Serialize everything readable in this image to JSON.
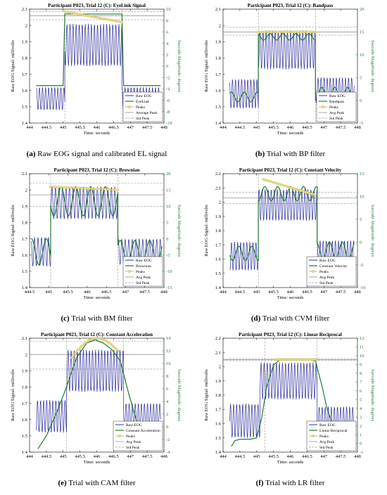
{
  "colors": {
    "raw": "#2e2e9e",
    "filter": "#207a35",
    "peaks": "#c8b45a",
    "peaks_fill": "#efe08c",
    "avg": "#808080",
    "std": "#9a9a9a",
    "right_axis": "#207a35"
  },
  "chart_data": [
    {
      "type": "line",
      "id": "a",
      "caption_label": "(a)",
      "caption_text": "Raw EOG signal and calibrated EL signal",
      "title": "Participant P023, Trial 12 (C): EyeLink Signal",
      "xlabel": "Time: seconds",
      "ylabel": "Raw EOG Signal: millivolts",
      "y2label": "Saccade Magnitude: degrees",
      "xlim": [
        444,
        448
      ],
      "ylim": [
        1.4,
        2.1
      ],
      "y2lim": [
        -10,
        10
      ],
      "xticks": [
        "444",
        "444.5",
        "445",
        "445.5",
        "446",
        "446.5",
        "447",
        "447.5",
        "448"
      ],
      "yticks": [
        "1.4",
        "1.5",
        "1.6",
        "1.7",
        "1.8",
        "1.9",
        "2",
        "2.1"
      ],
      "y2ticks": [
        "-10",
        "-8",
        "-6",
        "-4",
        "-2",
        "0",
        "2",
        "4",
        "6",
        "8",
        "10"
      ],
      "legend": [
        "Raw EOG",
        "EyeLink",
        "Peaks",
        "Average Peak",
        "Std Peak"
      ],
      "legend_position": "bottom-right",
      "raw": {
        "segments": [
          [
            444.2,
            445.05,
            1.55,
            0.07
          ],
          [
            445.05,
            446.75,
            1.88,
            0.13
          ],
          [
            446.75,
            447.9,
            1.55,
            0.07
          ]
        ]
      },
      "filtered": {
        "segments": [
          [
            444.2,
            445.0,
            1.63,
            0.0
          ],
          [
            445.05,
            446.75,
            2.07,
            0.0
          ],
          [
            446.8,
            447.9,
            1.63,
            0.0
          ]
        ]
      },
      "peaks": {
        "x_range": [
          445.05,
          446.75
        ],
        "y_start": 2.085,
        "y_end": 2.02
      },
      "avg_peak": 2.06,
      "std_peaks": [
        2.035,
        2.085
      ],
      "vlines": [
        445.05,
        446.75
      ]
    },
    {
      "type": "line",
      "id": "b",
      "caption_label": "(b)",
      "caption_text": "Trial with BP filter",
      "title": "Participant P023, Trial 12 (C): Bandpass",
      "xlabel": "Time: seconds",
      "ylabel": "Raw EOG Signal: millivolts",
      "y2label": "Saccade Magnitude: degrees",
      "xlim": [
        444,
        448
      ],
      "ylim": [
        1.4,
        2.1
      ],
      "y2lim": [
        -5,
        20
      ],
      "xticks": [
        "444",
        "444.5",
        "445",
        "445.5",
        "446",
        "446.5",
        "447",
        "447.5",
        "448"
      ],
      "yticks": [
        "1.4",
        "1.5",
        "1.6",
        "1.7",
        "1.8",
        "1.9",
        "2",
        "2.1"
      ],
      "y2ticks": [
        "-5",
        "0",
        "5",
        "10",
        "15",
        "20"
      ],
      "legend": [
        "Raw EOG",
        "Bandpass",
        "Peaks",
        "Avg Peak",
        "Std Peak"
      ],
      "legend_position": "bottom-right",
      "raw": {
        "segments": [
          [
            444.2,
            445.05,
            1.58,
            0.09
          ],
          [
            445.05,
            446.75,
            1.85,
            0.12
          ],
          [
            446.75,
            447.9,
            1.6,
            0.08
          ]
        ]
      },
      "filtered": {
        "segments": [
          [
            444.2,
            445.05,
            1.56,
            0.03
          ],
          [
            445.05,
            446.75,
            1.93,
            0.02
          ],
          [
            446.75,
            447.9,
            1.58,
            0.04
          ]
        ]
      },
      "peaks": {
        "x_range": [
          445.05,
          446.75
        ],
        "y_start": 1.96,
        "y_end": 1.96
      },
      "avg_peak": 1.96,
      "std_peaks": [
        1.94,
        1.99
      ],
      "vlines": [
        445.05,
        446.75
      ]
    },
    {
      "type": "line",
      "id": "c",
      "caption_label": "(c)",
      "caption_text": "Trial with BM filter",
      "title": "Participant P023, Trial 12 (C): Brownian",
      "xlabel": "Time: seconds",
      "ylabel": "Raw EOG Signal: millivolts",
      "y2label": "Saccade Magnitude: degrees",
      "xlim": [
        444.5,
        448
      ],
      "ylim": [
        1.4,
        2.1
      ],
      "y2lim": [
        -15,
        20
      ],
      "xticks": [
        "444.5",
        "445",
        "445.5",
        "446",
        "446.5",
        "447",
        "447.5",
        "448"
      ],
      "yticks": [
        "1.4",
        "1.5",
        "1.6",
        "1.7",
        "1.8",
        "1.9",
        "2",
        "2.1"
      ],
      "y2ticks": [
        "-15",
        "-10",
        "-5",
        "0",
        "5",
        "10",
        "15",
        "20"
      ],
      "legend": [
        "Raw EOG",
        "Brownian",
        "Peaks",
        "Avg Peak",
        "Std Peak"
      ],
      "legend_position": "bottom-right",
      "raw": {
        "segments": [
          [
            444.55,
            445.05,
            1.62,
            0.09
          ],
          [
            445.05,
            446.8,
            1.92,
            0.1
          ],
          [
            446.8,
            447.95,
            1.62,
            0.08
          ]
        ]
      },
      "filtered": {
        "segments": [
          [
            444.55,
            445.05,
            1.62,
            0.08
          ],
          [
            445.05,
            446.8,
            1.93,
            0.09
          ],
          [
            446.8,
            447.95,
            1.62,
            0.07
          ]
        ]
      },
      "peaks": {
        "x_range": [
          445.05,
          446.8
        ],
        "y_start": 2.02,
        "y_end": 2.0
      },
      "avg_peak": 1.97,
      "std_peaks": [
        1.9,
        2.04
      ],
      "vlines": [
        445.05,
        446.8
      ]
    },
    {
      "type": "line",
      "id": "d",
      "caption_label": "(d)",
      "caption_text": "Trial with CVM filter",
      "title": "Participant P023, Trial 12 (C): Constant Velocity",
      "xlabel": "Time: seconds",
      "ylabel": "Raw EOG Signal: millivolts",
      "y2label": "Saccade Magnitude: degrees",
      "xlim": [
        444,
        448
      ],
      "ylim": [
        1.4,
        2.2
      ],
      "y2lim": [
        -10,
        15
      ],
      "xticks": [
        "444",
        "444.5",
        "445",
        "445.5",
        "446",
        "446.5",
        "447",
        "447.5",
        "448"
      ],
      "yticks": [
        "1.4",
        "1.5",
        "1.6",
        "1.7",
        "1.8",
        "1.9",
        "2",
        "2.1",
        "2.2"
      ],
      "y2ticks": [
        "-10",
        "-5",
        "0",
        "5",
        "10",
        "15"
      ],
      "legend": [
        "Raw EOG",
        "Constant Velocity",
        "Peaks",
        "Avg Peak",
        "Std Peak"
      ],
      "legend_position": "bottom-right",
      "raw": {
        "segments": [
          [
            444.2,
            445.05,
            1.62,
            0.1
          ],
          [
            445.05,
            446.8,
            1.98,
            0.11
          ],
          [
            446.8,
            447.9,
            1.64,
            0.09
          ]
        ]
      },
      "filtered": {
        "segments": [
          [
            444.2,
            445.05,
            1.64,
            0.05
          ],
          [
            445.05,
            446.8,
            2.06,
            0.05
          ],
          [
            446.8,
            447.9,
            1.66,
            0.06
          ]
        ]
      },
      "peaks": {
        "x_range": [
          445.2,
          446.75
        ],
        "y_start": 2.16,
        "y_end": 2.05
      },
      "avg_peak": 2.03,
      "std_peaks": [
        1.99,
        2.07
      ],
      "vlines": [
        445.05,
        446.8
      ]
    },
    {
      "type": "line",
      "id": "e",
      "caption_label": "(e)",
      "caption_text": "Trial with CAM filter",
      "title": "Participant P023, Trial 12 (C): Constant Acceleration",
      "xlabel": "Time: seconds",
      "ylabel": "Raw EOG Signal: millivolts",
      "y2label": "Saccade Magnitude: degrees",
      "xlim": [
        444,
        448
      ],
      "ylim": [
        1.4,
        2.1
      ],
      "y2lim": [
        -4,
        14
      ],
      "xticks": [
        "444",
        "444.5",
        "445",
        "445.5",
        "446",
        "446.5",
        "447",
        "447.5",
        "448"
      ],
      "yticks": [
        "1.4",
        "1.5",
        "1.6",
        "1.7",
        "1.8",
        "1.9",
        "2",
        "2.1"
      ],
      "y2ticks": [
        "-4",
        "-2",
        "0",
        "2",
        "4",
        "6",
        "8",
        "10",
        "12",
        "14"
      ],
      "legend": [
        "Raw EOG",
        "Constant Acceleration",
        "Peaks",
        "Avg Peak",
        "Std Peak"
      ],
      "legend_position": "bottom-right",
      "raw": {
        "segments": [
          [
            444.2,
            445.1,
            1.62,
            0.1
          ],
          [
            445.1,
            446.8,
            1.9,
            0.13
          ],
          [
            446.8,
            447.9,
            1.62,
            0.08
          ]
        ]
      },
      "filtered": {
        "curve": [
          [
            444.25,
            1.42
          ],
          [
            444.5,
            1.5
          ],
          [
            444.8,
            1.64
          ],
          [
            445.1,
            1.8
          ],
          [
            445.4,
            1.98
          ],
          [
            445.7,
            2.07
          ],
          [
            445.95,
            2.09
          ],
          [
            446.2,
            2.07
          ],
          [
            446.45,
            2.03
          ],
          [
            446.7,
            1.96
          ],
          [
            446.95,
            1.76
          ],
          [
            447.2,
            1.58
          ],
          [
            447.35,
            1.52
          ]
        ]
      },
      "peaks": {
        "x_range": [
          445.25,
          446.65
        ],
        "y_start": 1.98,
        "y_end": 2.02,
        "arc": true
      },
      "avg_peak": 2.0,
      "std_peaks": [
        1.91,
        2.08
      ],
      "vlines": [
        445.1,
        446.8
      ]
    },
    {
      "type": "line",
      "id": "f",
      "caption_label": "(f)",
      "caption_text": "Trial with LR filter",
      "title": "Participant P023, Trial 12 (C): Linear Reciprocal",
      "xlabel": "Time: seconds",
      "ylabel": "Raw EOG Signal: millivolts",
      "y2label": "Saccade Magnitude: degrees",
      "xlim": [
        444,
        448
      ],
      "ylim": [
        1.4,
        2.2
      ],
      "y2lim": [
        -1,
        12
      ],
      "xticks": [
        "444",
        "444.5",
        "445",
        "445.5",
        "446",
        "446.5",
        "447",
        "447.5",
        "448"
      ],
      "yticks": [
        "1.4",
        "1.5",
        "1.6",
        "1.7",
        "1.8",
        "1.9",
        "2",
        "2.1",
        "2.2"
      ],
      "y2ticks": [
        "-1",
        "0",
        "1",
        "2",
        "3",
        "4",
        "5",
        "6",
        "7",
        "8",
        "9",
        "10",
        "11",
        "12"
      ],
      "legend": [
        "Raw EOG",
        "Linear Reciprocal",
        "Peaks",
        "Avg Peak",
        "Std Peak"
      ],
      "legend_position": "bottom-right",
      "raw": {
        "segments": [
          [
            444.2,
            445.1,
            1.62,
            0.12
          ],
          [
            445.1,
            446.8,
            1.9,
            0.13
          ],
          [
            446.8,
            447.9,
            1.62,
            0.1
          ]
        ]
      },
      "filtered": {
        "curve": [
          [
            444.25,
            1.44
          ],
          [
            444.35,
            1.48
          ],
          [
            444.5,
            1.49
          ],
          [
            444.8,
            1.49
          ],
          [
            445.0,
            1.5
          ],
          [
            445.15,
            1.64
          ],
          [
            445.3,
            1.86
          ],
          [
            445.5,
            2.01
          ],
          [
            445.7,
            2.05
          ],
          [
            446.0,
            2.05
          ],
          [
            446.5,
            2.05
          ],
          [
            446.75,
            2.04
          ],
          [
            446.95,
            1.86
          ],
          [
            447.1,
            1.7
          ],
          [
            447.25,
            1.6
          ],
          [
            447.4,
            1.56
          ]
        ]
      },
      "peaks": {
        "x_range": [
          445.55,
          446.75
        ],
        "y_start": 2.05,
        "y_end": 2.05
      },
      "avg_peak": 2.05,
      "std_peaks": [
        2.043,
        2.057
      ],
      "vlines": [
        445.25,
        446.8
      ]
    }
  ]
}
